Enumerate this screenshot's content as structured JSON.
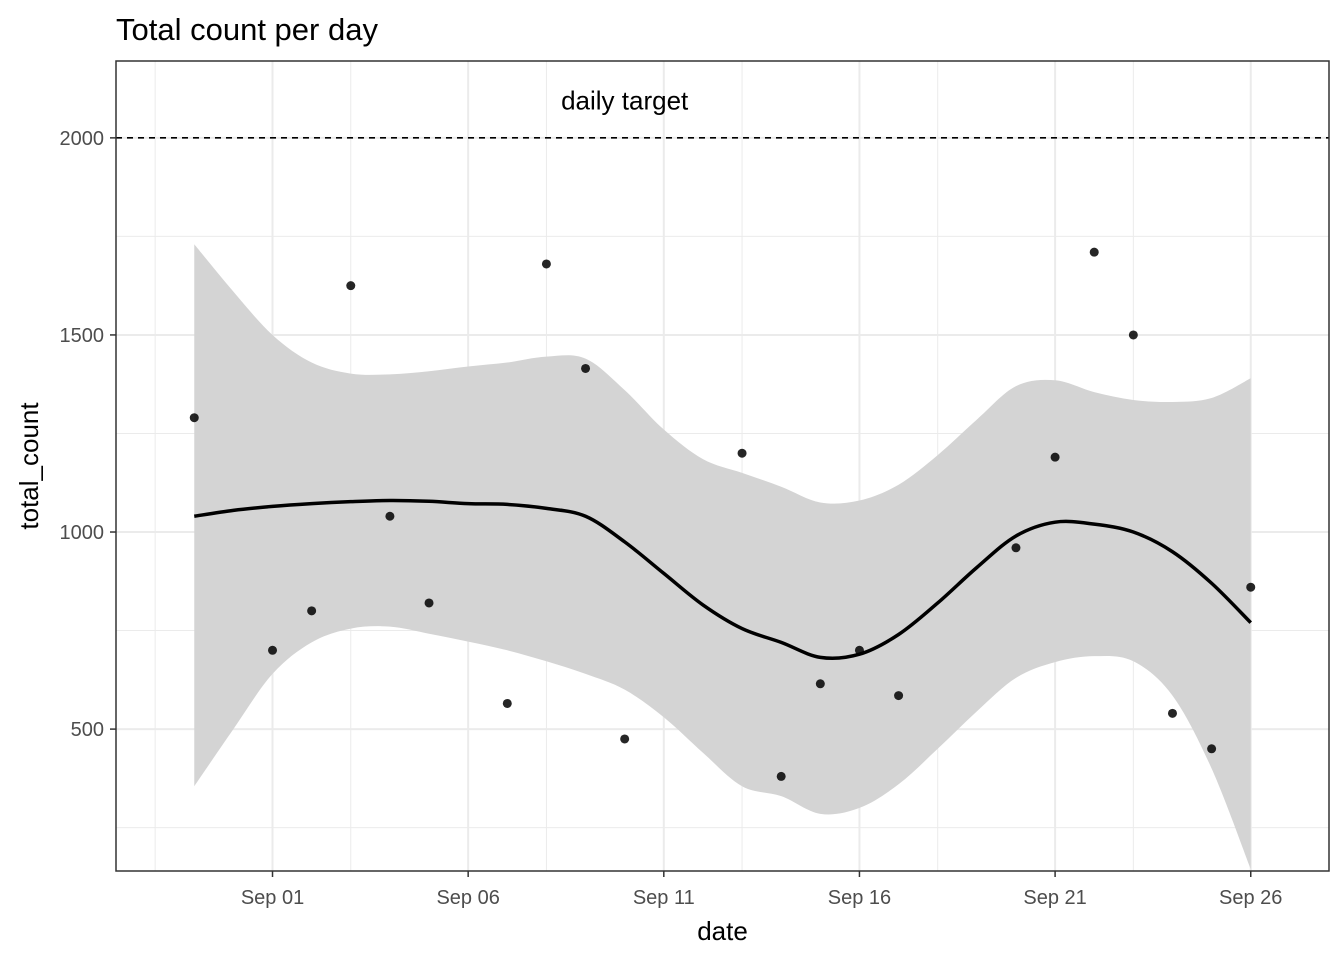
{
  "chart_data": {
    "type": "scatter",
    "title": "Total count per day",
    "xlabel": "date",
    "ylabel": "total_count",
    "x_range": [
      "2021-08-28",
      "2021-09-28"
    ],
    "ylim": [
      140,
      2195
    ],
    "y_ticks": [
      500,
      1000,
      1500,
      2000
    ],
    "x_ticks": [
      {
        "date": "2021-09-01",
        "label": "Sep 01"
      },
      {
        "date": "2021-09-06",
        "label": "Sep 06"
      },
      {
        "date": "2021-09-11",
        "label": "Sep 11"
      },
      {
        "date": "2021-09-16",
        "label": "Sep 16"
      },
      {
        "date": "2021-09-21",
        "label": "Sep 21"
      },
      {
        "date": "2021-09-26",
        "label": "Sep 26"
      }
    ],
    "grid": true,
    "points": [
      {
        "date": "2021-08-30",
        "value": 1290
      },
      {
        "date": "2021-09-01",
        "value": 700
      },
      {
        "date": "2021-09-02",
        "value": 800
      },
      {
        "date": "2021-09-03",
        "value": 1625
      },
      {
        "date": "2021-09-04",
        "value": 1040
      },
      {
        "date": "2021-09-05",
        "value": 820
      },
      {
        "date": "2021-09-07",
        "value": 565
      },
      {
        "date": "2021-09-08",
        "value": 1680
      },
      {
        "date": "2021-09-09",
        "value": 1415
      },
      {
        "date": "2021-09-10",
        "value": 475
      },
      {
        "date": "2021-09-13",
        "value": 1200
      },
      {
        "date": "2021-09-14",
        "value": 380
      },
      {
        "date": "2021-09-15",
        "value": 615
      },
      {
        "date": "2021-09-16",
        "value": 700
      },
      {
        "date": "2021-09-17",
        "value": 585
      },
      {
        "date": "2021-09-20",
        "value": 960
      },
      {
        "date": "2021-09-21",
        "value": 1190
      },
      {
        "date": "2021-09-22",
        "value": 1710
      },
      {
        "date": "2021-09-23",
        "value": 1500
      },
      {
        "date": "2021-09-24",
        "value": 540
      },
      {
        "date": "2021-09-25",
        "value": 450
      },
      {
        "date": "2021-09-26",
        "value": 860
      }
    ],
    "smooth": [
      {
        "date": "2021-08-30",
        "fit": 1040,
        "lower": 355,
        "upper": 1730
      },
      {
        "date": "2021-08-31",
        "fit": 1055,
        "lower": 500,
        "upper": 1610
      },
      {
        "date": "2021-09-01",
        "fit": 1065,
        "lower": 640,
        "upper": 1500
      },
      {
        "date": "2021-09-02",
        "fit": 1072,
        "lower": 720,
        "upper": 1430
      },
      {
        "date": "2021-09-03",
        "fit": 1077,
        "lower": 755,
        "upper": 1402
      },
      {
        "date": "2021-09-04",
        "fit": 1080,
        "lower": 760,
        "upper": 1400
      },
      {
        "date": "2021-09-05",
        "fit": 1078,
        "lower": 742,
        "upper": 1408
      },
      {
        "date": "2021-09-06",
        "fit": 1072,
        "lower": 722,
        "upper": 1420
      },
      {
        "date": "2021-09-07",
        "fit": 1070,
        "lower": 700,
        "upper": 1430
      },
      {
        "date": "2021-09-08",
        "fit": 1060,
        "lower": 672,
        "upper": 1445
      },
      {
        "date": "2021-09-09",
        "fit": 1040,
        "lower": 640,
        "upper": 1440
      },
      {
        "date": "2021-09-10",
        "fit": 975,
        "lower": 600,
        "upper": 1360
      },
      {
        "date": "2021-09-11",
        "fit": 895,
        "lower": 530,
        "upper": 1260
      },
      {
        "date": "2021-09-12",
        "fit": 815,
        "lower": 440,
        "upper": 1185
      },
      {
        "date": "2021-09-13",
        "fit": 755,
        "lower": 355,
        "upper": 1150
      },
      {
        "date": "2021-09-14",
        "fit": 720,
        "lower": 330,
        "upper": 1115
      },
      {
        "date": "2021-09-15",
        "fit": 682,
        "lower": 285,
        "upper": 1075
      },
      {
        "date": "2021-09-16",
        "fit": 690,
        "lower": 300,
        "upper": 1080
      },
      {
        "date": "2021-09-17",
        "fit": 740,
        "lower": 360,
        "upper": 1120
      },
      {
        "date": "2021-09-18",
        "fit": 820,
        "lower": 450,
        "upper": 1195
      },
      {
        "date": "2021-09-19",
        "fit": 910,
        "lower": 545,
        "upper": 1285
      },
      {
        "date": "2021-09-20",
        "fit": 990,
        "lower": 630,
        "upper": 1370
      },
      {
        "date": "2021-09-21",
        "fit": 1025,
        "lower": 670,
        "upper": 1385
      },
      {
        "date": "2021-09-22",
        "fit": 1020,
        "lower": 685,
        "upper": 1355
      },
      {
        "date": "2021-09-23",
        "fit": 1000,
        "lower": 672,
        "upper": 1335
      },
      {
        "date": "2021-09-24",
        "fit": 950,
        "lower": 585,
        "upper": 1330
      },
      {
        "date": "2021-09-25",
        "fit": 870,
        "lower": 400,
        "upper": 1340
      },
      {
        "date": "2021-09-26",
        "fit": 770,
        "lower": 145,
        "upper": 1390
      }
    ],
    "reference_line": {
      "value": 2000,
      "style": "dashed",
      "label": "daily target",
      "label_date": "2021-09-10",
      "label_value": 2095
    },
    "colors": {
      "points": "#000000",
      "smooth_line": "#000000",
      "ribbon": "#d4d4d4",
      "grid": "#ebebeb",
      "panel_border": "#333333"
    }
  }
}
